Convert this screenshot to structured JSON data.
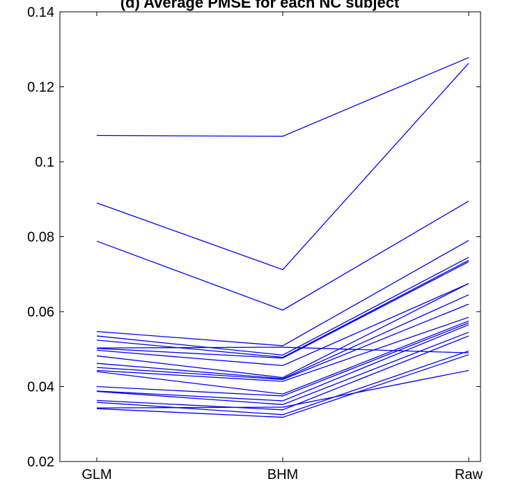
{
  "chart_data": {
    "type": "line",
    "title": "(d) Average PMSE for each NC subject",
    "xlabel": "",
    "ylabel": "",
    "categories": [
      "GLM",
      "BHM",
      "Raw"
    ],
    "ylim": [
      0.02,
      0.14
    ],
    "yticks": [
      0.02,
      0.04,
      0.06,
      0.08,
      0.1,
      0.12,
      0.14
    ],
    "ytick_labels": [
      "0.02",
      "0.04",
      "0.06",
      "0.08",
      "0.1",
      "0.12",
      "0.14"
    ],
    "grid": false,
    "line_color": "#0000ee",
    "series": [
      {
        "values": [
          0.107,
          0.1068,
          0.1278
        ]
      },
      {
        "values": [
          0.089,
          0.0712,
          0.1263
        ]
      },
      {
        "values": [
          0.0788,
          0.0604,
          0.0895
        ]
      },
      {
        "values": [
          0.0547,
          0.0509,
          0.079
        ]
      },
      {
        "values": [
          0.0535,
          0.0484,
          0.0745
        ]
      },
      {
        "values": [
          0.0524,
          0.0478,
          0.0737
        ]
      },
      {
        "values": [
          0.0503,
          0.0505,
          0.049
        ]
      },
      {
        "values": [
          0.0502,
          0.0476,
          0.0733
        ]
      },
      {
        "values": [
          0.0497,
          0.0456,
          0.0675
        ]
      },
      {
        "values": [
          0.0482,
          0.0424,
          0.0675
        ]
      },
      {
        "values": [
          0.0462,
          0.0421,
          0.0645
        ]
      },
      {
        "values": [
          0.0451,
          0.0419,
          0.062
        ]
      },
      {
        "values": [
          0.0443,
          0.0414,
          0.0585
        ]
      },
      {
        "values": [
          0.044,
          0.038,
          0.0575
        ]
      },
      {
        "values": [
          0.04,
          0.0375,
          0.057
        ]
      },
      {
        "values": [
          0.0388,
          0.0362,
          0.0565
        ]
      },
      {
        "values": [
          0.0387,
          0.0352,
          0.0545
        ]
      },
      {
        "values": [
          0.0363,
          0.0338,
          0.0535
        ]
      },
      {
        "values": [
          0.0358,
          0.0325,
          0.0495
        ]
      },
      {
        "values": [
          0.0341,
          0.0318,
          0.0485
        ]
      },
      {
        "values": [
          0.0343,
          0.0345,
          0.0443
        ]
      }
    ]
  }
}
